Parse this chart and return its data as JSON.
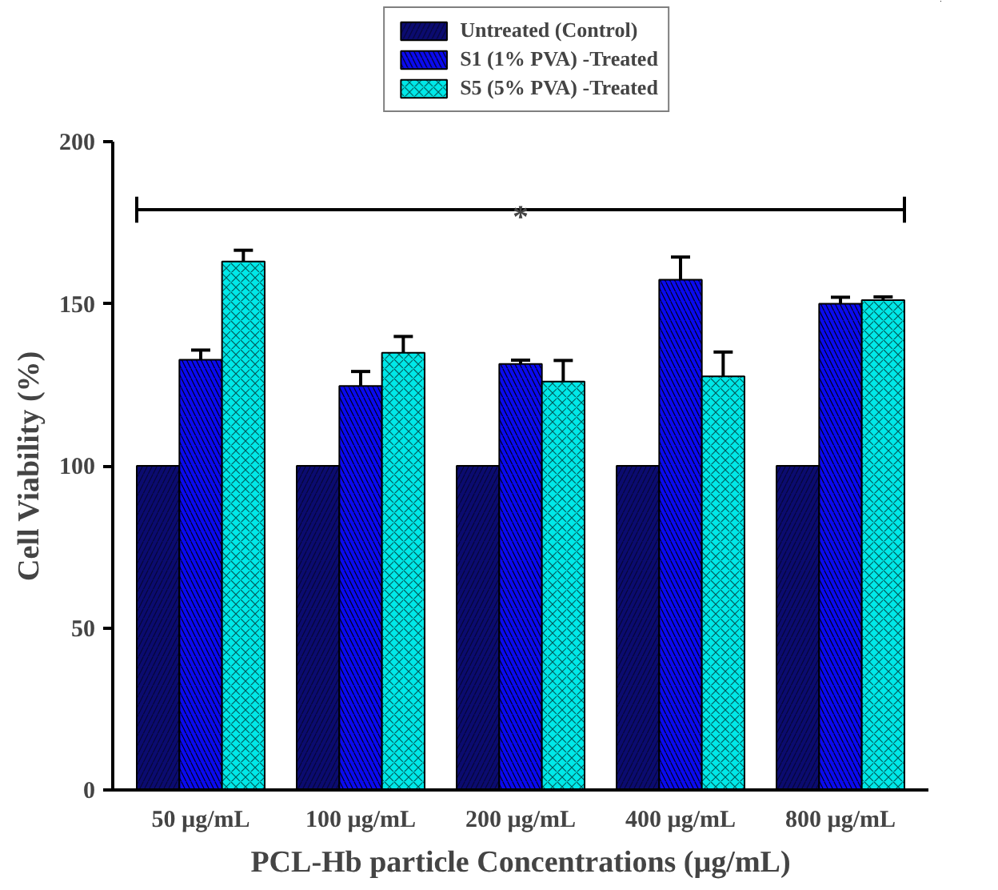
{
  "chart_data": {
    "type": "bar",
    "xlabel": "PCL-Hb particle Concentrations (µg/mL)",
    "ylabel": "Cell Viability (%)",
    "categories": [
      "50 µg/mL",
      "100 µg/mL",
      "200 µg/mL",
      "400 µg/mL",
      "800 µg/mL"
    ],
    "series": [
      {
        "name": "Untreated (Control)",
        "color": "#0b0b70",
        "values": [
          100,
          100,
          100,
          100,
          100
        ]
      },
      {
        "name": "S1 (1% PVA) -Treated",
        "color": "#0a0af0",
        "values": [
          132.7,
          124.6,
          131.4,
          157.4,
          150.0
        ],
        "errors": [
          3,
          4.5,
          1.2,
          7,
          2
        ]
      },
      {
        "name": "S5 (5% PVA) -Treated",
        "color": "#00e8e8",
        "values": [
          163.0,
          134.9,
          126.0,
          127.6,
          151.1
        ],
        "errors": [
          3.5,
          5,
          6.5,
          7.5,
          1
        ]
      }
    ],
    "ylim": [
      0,
      200
    ],
    "yticks": [
      0,
      50,
      100,
      150,
      200
    ],
    "grid": false,
    "legend": "top",
    "ref_lines": [
      {
        "axis": "y",
        "value": 179,
        "label": "*"
      }
    ]
  }
}
